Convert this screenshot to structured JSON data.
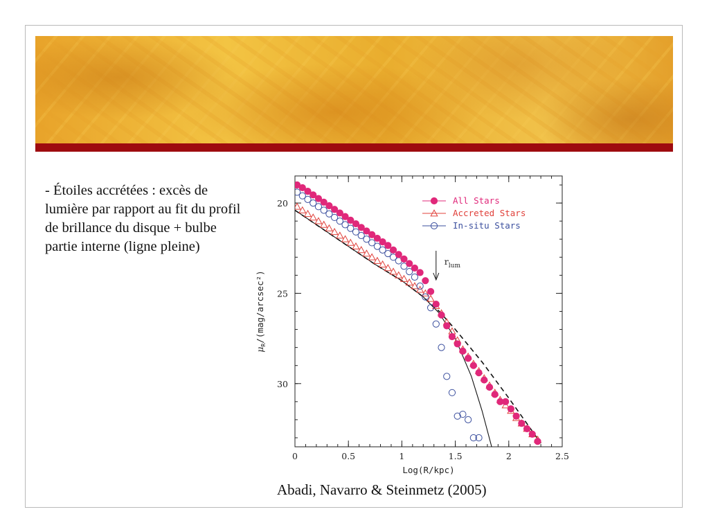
{
  "slide": {
    "bullet_text": "- Étoiles accrétées : excès de lumière par rapport au fit du profil de brillance du disque + bulbe partie interne (ligne pleine)",
    "citation": "Abadi, Navarro & Steinmetz (2005)",
    "colors": {
      "banner": "#f0b93a",
      "accent_bar": "#9e0b0f"
    }
  },
  "chart_data": {
    "type": "scatter",
    "title": "",
    "xlabel": "Log(R/kpc)",
    "ylabel": "μR/(mag/arcsec²)",
    "ylabel_main": "μ",
    "ylabel_sub": "R",
    "ylabel_rest": "/(mag/arcsec²)",
    "xlim": [
      0,
      2.5
    ],
    "ylim": [
      33.5,
      18.5
    ],
    "y_inverted": true,
    "x_ticks": [
      "0",
      "0.5",
      "1",
      "1.5",
      "2",
      "2.5"
    ],
    "y_ticks": [
      "20",
      "25",
      "30"
    ],
    "legend_position": "top-right",
    "annotation": {
      "main": "r",
      "sub": "lum",
      "x": 1.32
    },
    "series": [
      {
        "name": "All Stars",
        "marker": "filled-circle",
        "color": "#e0287a",
        "x": [
          0.02,
          0.07,
          0.12,
          0.17,
          0.22,
          0.27,
          0.32,
          0.37,
          0.42,
          0.47,
          0.52,
          0.57,
          0.62,
          0.67,
          0.72,
          0.77,
          0.82,
          0.87,
          0.92,
          0.97,
          1.02,
          1.07,
          1.12,
          1.17,
          1.22,
          1.27,
          1.32,
          1.37,
          1.42,
          1.47,
          1.52,
          1.57,
          1.62,
          1.67,
          1.72,
          1.77,
          1.82,
          1.87,
          1.92,
          1.97,
          2.02,
          2.07,
          2.12,
          2.17,
          2.22,
          2.27
        ],
        "y": [
          19.0,
          19.15,
          19.35,
          19.55,
          19.75,
          19.95,
          20.15,
          20.35,
          20.55,
          20.75,
          20.95,
          21.15,
          21.35,
          21.55,
          21.75,
          21.95,
          22.15,
          22.35,
          22.6,
          22.85,
          23.1,
          23.35,
          23.6,
          23.85,
          24.3,
          24.9,
          25.6,
          26.2,
          26.8,
          27.4,
          27.8,
          28.2,
          28.6,
          29.0,
          29.4,
          29.8,
          30.2,
          30.6,
          31.0,
          31.0,
          31.4,
          31.8,
          32.2,
          32.5,
          32.8,
          33.2
        ]
      },
      {
        "name": "Accreted Stars",
        "marker": "open-triangle",
        "color": "#e0403a",
        "x": [
          0.02,
          0.07,
          0.12,
          0.17,
          0.22,
          0.27,
          0.32,
          0.37,
          0.42,
          0.47,
          0.52,
          0.57,
          0.62,
          0.67,
          0.72,
          0.77,
          0.82,
          0.87,
          0.92,
          0.97,
          1.02,
          1.07,
          1.12,
          1.17,
          1.22,
          1.27,
          1.32,
          1.37,
          1.42,
          1.47,
          1.52,
          1.57,
          1.62,
          1.67,
          1.72,
          1.77,
          1.82,
          1.87,
          1.92,
          1.97,
          2.02,
          2.07,
          2.12,
          2.17,
          2.22,
          2.27
        ],
        "y": [
          20.2,
          20.4,
          20.6,
          20.8,
          21.0,
          21.2,
          21.4,
          21.6,
          21.8,
          22.0,
          22.2,
          22.4,
          22.6,
          22.8,
          23.0,
          23.2,
          23.4,
          23.6,
          23.8,
          24.0,
          24.2,
          24.4,
          24.6,
          24.8,
          25.0,
          25.3,
          25.7,
          26.1,
          26.6,
          27.1,
          27.6,
          28.1,
          28.5,
          28.9,
          29.3,
          29.7,
          30.1,
          30.5,
          30.9,
          31.2,
          31.5,
          31.9,
          32.2,
          32.5,
          32.8,
          33.1
        ]
      },
      {
        "name": "In-situ Stars",
        "marker": "open-circle",
        "color": "#3b4f9e",
        "x": [
          0.02,
          0.07,
          0.12,
          0.17,
          0.22,
          0.27,
          0.32,
          0.37,
          0.42,
          0.47,
          0.52,
          0.57,
          0.62,
          0.67,
          0.72,
          0.77,
          0.82,
          0.87,
          0.92,
          0.97,
          1.02,
          1.07,
          1.12,
          1.17,
          1.22,
          1.27,
          1.32,
          1.37,
          1.42,
          1.47,
          1.52,
          1.57,
          1.62,
          1.67,
          1.72
        ],
        "y": [
          19.4,
          19.6,
          19.8,
          20.0,
          20.2,
          20.4,
          20.6,
          20.8,
          21.0,
          21.2,
          21.4,
          21.6,
          21.8,
          22.0,
          22.2,
          22.4,
          22.6,
          22.8,
          23.0,
          23.2,
          23.5,
          23.8,
          24.1,
          24.6,
          25.2,
          25.8,
          26.7,
          28.0,
          29.6,
          30.5,
          31.8,
          31.7,
          32.0,
          33.0,
          33.0
        ]
      }
    ],
    "fit_curves": [
      {
        "style": "dashed",
        "x": [
          0,
          0.25,
          0.5,
          0.75,
          1.0,
          1.2,
          1.35,
          1.5,
          1.75,
          2.0,
          2.3
        ],
        "y": [
          20.4,
          21.4,
          22.4,
          23.4,
          24.3,
          25.2,
          26.0,
          27.0,
          28.8,
          30.8,
          33.3
        ]
      },
      {
        "style": "solid",
        "x": [
          0,
          0.25,
          0.5,
          0.75,
          1.0,
          1.2,
          1.35,
          1.5,
          1.65,
          1.75,
          1.84
        ],
        "y": [
          20.4,
          21.4,
          22.4,
          23.4,
          24.3,
          25.2,
          26.1,
          27.5,
          29.6,
          31.5,
          33.5
        ]
      }
    ]
  }
}
